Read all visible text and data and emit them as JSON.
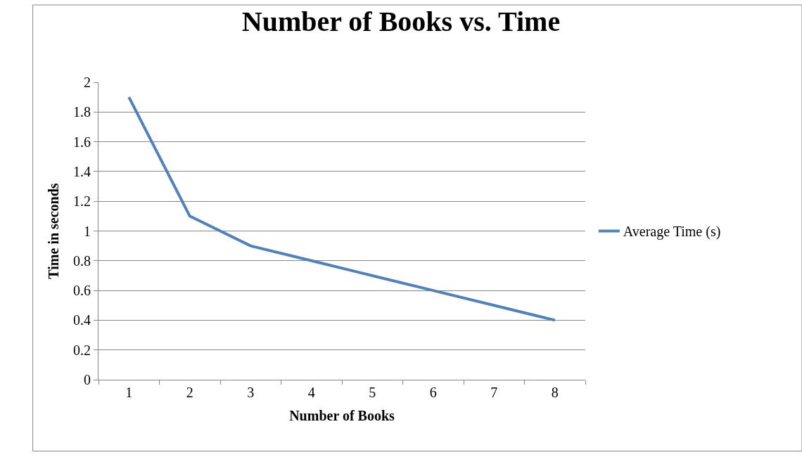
{
  "chart_data": {
    "type": "line",
    "title": "Number of Books vs. Time",
    "xlabel": "Number of Books",
    "ylabel": "Time in seconds",
    "categories": [
      "1",
      "2",
      "3",
      "4",
      "5",
      "6",
      "7",
      "8"
    ],
    "series": [
      {
        "name": "Average Time (s)",
        "color": "#4f81bd",
        "values": [
          1.9,
          1.1,
          0.9,
          0.8,
          0.7,
          0.6,
          0.5,
          0.4
        ]
      }
    ],
    "ylim": [
      0,
      2
    ],
    "yticks": [
      0,
      0.2,
      0.4,
      0.6,
      0.8,
      1,
      1.2,
      1.4,
      1.6,
      1.8,
      2
    ],
    "grid": "y",
    "legend": "right",
    "marker": "none",
    "line_style": "solid"
  }
}
